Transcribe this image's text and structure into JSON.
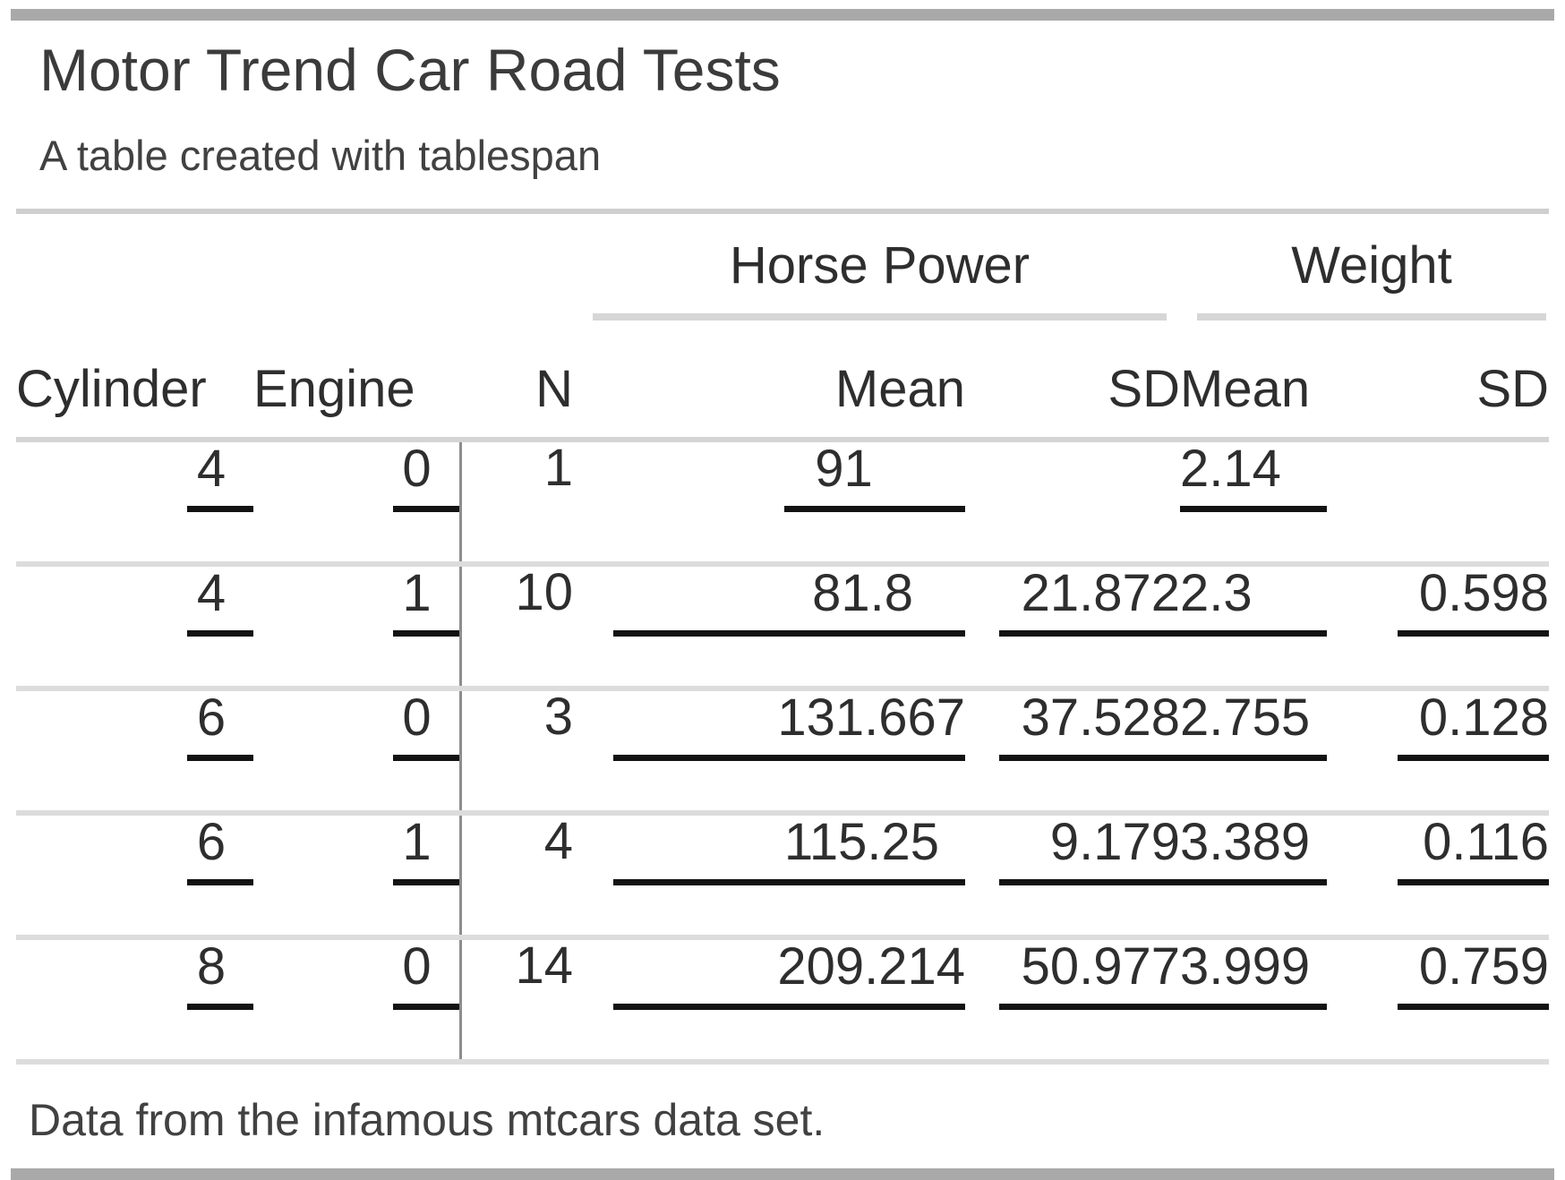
{
  "header": {
    "title": "Motor Trend Car Road Tests",
    "subtitle": "A table created with tablespan"
  },
  "table": {
    "spanners": [
      {
        "label": "Horse Power",
        "columns": [
          "Mean",
          "SD"
        ]
      },
      {
        "label": "Weight",
        "columns": [
          "Mean",
          "SD"
        ]
      }
    ],
    "columns": [
      "Cylinder",
      "Engine",
      "N",
      "Mean",
      "SD",
      "Mean",
      "SD"
    ],
    "rows": [
      {
        "cylinder": "4",
        "engine": "0",
        "n": "1",
        "hp_mean": "91",
        "hp_sd": "",
        "wt_mean": "2.14",
        "wt_sd": ""
      },
      {
        "cylinder": "4",
        "engine": "1",
        "n": "10",
        "hp_mean": "81.8",
        "hp_sd": "21.872",
        "wt_mean": "2.3",
        "wt_sd": "0.598"
      },
      {
        "cylinder": "6",
        "engine": "0",
        "n": "3",
        "hp_mean": "131.667",
        "hp_sd": "37.528",
        "wt_mean": "2.755",
        "wt_sd": "0.128"
      },
      {
        "cylinder": "6",
        "engine": "1",
        "n": "4",
        "hp_mean": "115.25",
        "hp_sd": "9.179",
        "wt_mean": "3.389",
        "wt_sd": "0.116"
      },
      {
        "cylinder": "8",
        "engine": "0",
        "n": "14",
        "hp_mean": "209.214",
        "hp_sd": "50.977",
        "wt_mean": "3.999",
        "wt_sd": "0.759"
      }
    ]
  },
  "footer": {
    "note": "Data from the infamous mtcars data set."
  },
  "colors": {
    "outer_bar": "#a9a9a9",
    "light_rule": "#d4d4d4",
    "row_separator": "#dcdcdc",
    "value_underline": "#131313",
    "vertical_divider": "#8d8d8d",
    "text": "#3b3b3b"
  }
}
